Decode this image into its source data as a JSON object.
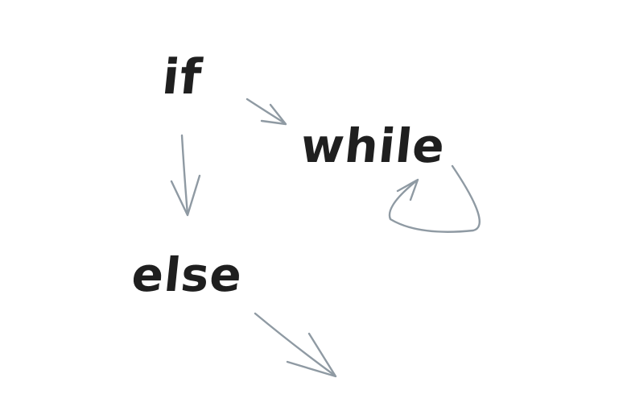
{
  "diagram": {
    "nodes": [
      {
        "id": "if",
        "label": "if"
      },
      {
        "id": "while",
        "label": "while"
      },
      {
        "id": "else",
        "label": "else"
      }
    ],
    "edges": [
      {
        "from": "if",
        "to": "while"
      },
      {
        "from": "if",
        "to": "else"
      },
      {
        "from": "while",
        "to": "while"
      },
      {
        "from": "else",
        "to": ""
      }
    ],
    "colors": {
      "text": "#1f1f1f",
      "arrow": "#8f9aa3",
      "background": "#ffffff"
    }
  }
}
